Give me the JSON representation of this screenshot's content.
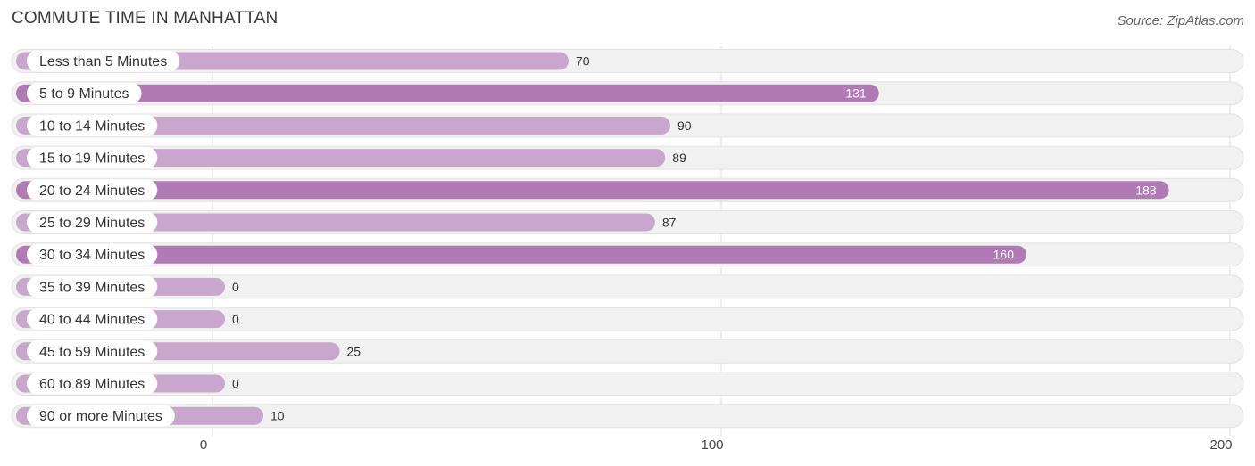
{
  "header": {
    "title": "COMMUTE TIME IN MANHATTAN",
    "source": "Source: ZipAtlas.com"
  },
  "colors": {
    "bar_strong": "#b07ab4",
    "bar_light": "#c9a6cc",
    "track": "#f1f1f1",
    "grid": "#dddddd"
  },
  "chart_data": {
    "type": "bar",
    "orientation": "horizontal",
    "title": "COMMUTE TIME IN MANHATTAN",
    "categories": [
      "Less than 5 Minutes",
      "5 to 9 Minutes",
      "10 to 14 Minutes",
      "15 to 19 Minutes",
      "20 to 24 Minutes",
      "25 to 29 Minutes",
      "30 to 34 Minutes",
      "35 to 39 Minutes",
      "40 to 44 Minutes",
      "45 to 59 Minutes",
      "60 to 89 Minutes",
      "90 or more Minutes"
    ],
    "values": [
      70,
      131,
      90,
      89,
      188,
      87,
      160,
      0,
      0,
      25,
      0,
      10
    ],
    "xlim": [
      0,
      200
    ],
    "xticks": [
      0,
      100,
      200
    ],
    "grid": true
  }
}
